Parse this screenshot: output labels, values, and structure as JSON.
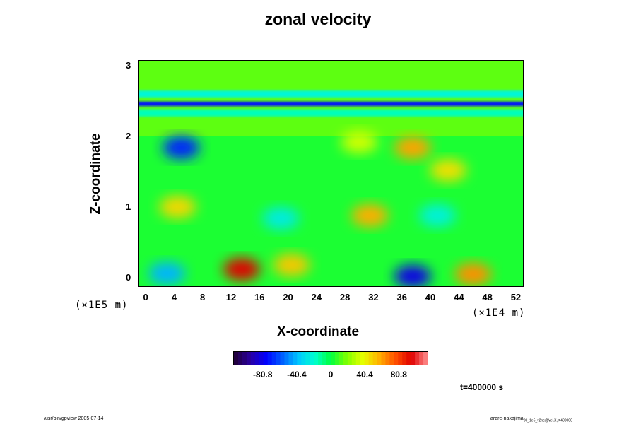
{
  "chart_data": {
    "type": "heatmap",
    "title": "zonal velocity",
    "xlabel": "X-coordinate",
    "ylabel": "Z-coordinate",
    "x_ticks": [
      "0",
      "4",
      "8",
      "12",
      "16",
      "20",
      "24",
      "28",
      "32",
      "36",
      "40",
      "44",
      "48",
      "52"
    ],
    "y_ticks": [
      "0",
      "1",
      "2",
      "3"
    ],
    "x_scale_label": "(×1E4 m)",
    "y_scale_label": "(×1E5 m)",
    "xlim": [
      -1,
      53
    ],
    "ylim": [
      -0.12,
      3.07
    ],
    "colorbar": {
      "ticks": [
        "-80.8",
        "-40.4",
        "0",
        "40.4",
        "80.8"
      ],
      "range": [
        -115,
        115
      ],
      "colors": [
        "#200030",
        "#2a00a0",
        "#0000ff",
        "#0060ff",
        "#00c8ff",
        "#00ffd0",
        "#00ff40",
        "#80ff00",
        "#e8ff00",
        "#ffb000",
        "#ff5000",
        "#e00000",
        "#ff9090"
      ]
    },
    "features": [
      {
        "kind": "band",
        "z": 2.46,
        "value": -75
      },
      {
        "kind": "band",
        "z": 2.6,
        "value": -22
      },
      {
        "kind": "band",
        "z": 2.33,
        "value": -16
      },
      {
        "kind": "blob",
        "x": 5,
        "z": 1.84,
        "value": -70
      },
      {
        "kind": "blob",
        "x": 3,
        "z": 0.06,
        "value": -42
      },
      {
        "kind": "blob",
        "x": 4.5,
        "z": 1.0,
        "value": 48
      },
      {
        "kind": "blob",
        "x": 13.5,
        "z": 0.12,
        "value": 96
      },
      {
        "kind": "blob",
        "x": 20.5,
        "z": 0.18,
        "value": 52
      },
      {
        "kind": "blob",
        "x": 31.5,
        "z": 0.88,
        "value": 58
      },
      {
        "kind": "blob",
        "x": 37.5,
        "z": 0.02,
        "value": -82
      },
      {
        "kind": "blob",
        "x": 46,
        "z": 0.05,
        "value": 64
      },
      {
        "kind": "blob",
        "x": 37.5,
        "z": 1.84,
        "value": 60
      },
      {
        "kind": "blob",
        "x": 30,
        "z": 1.92,
        "value": 34
      },
      {
        "kind": "blob",
        "x": 42.5,
        "z": 1.52,
        "value": 46
      },
      {
        "kind": "blob",
        "x": 19,
        "z": 0.84,
        "value": -26
      },
      {
        "kind": "blob",
        "x": 41,
        "z": 0.88,
        "value": -24
      }
    ],
    "time": "t=400000 s"
  },
  "footer": {
    "left": "/usr/bin/gpview 2005-07-14",
    "right_main": "arare-nakajima",
    "right_sub": "00_1e5_v2nc@Vel.X,t=400000"
  }
}
